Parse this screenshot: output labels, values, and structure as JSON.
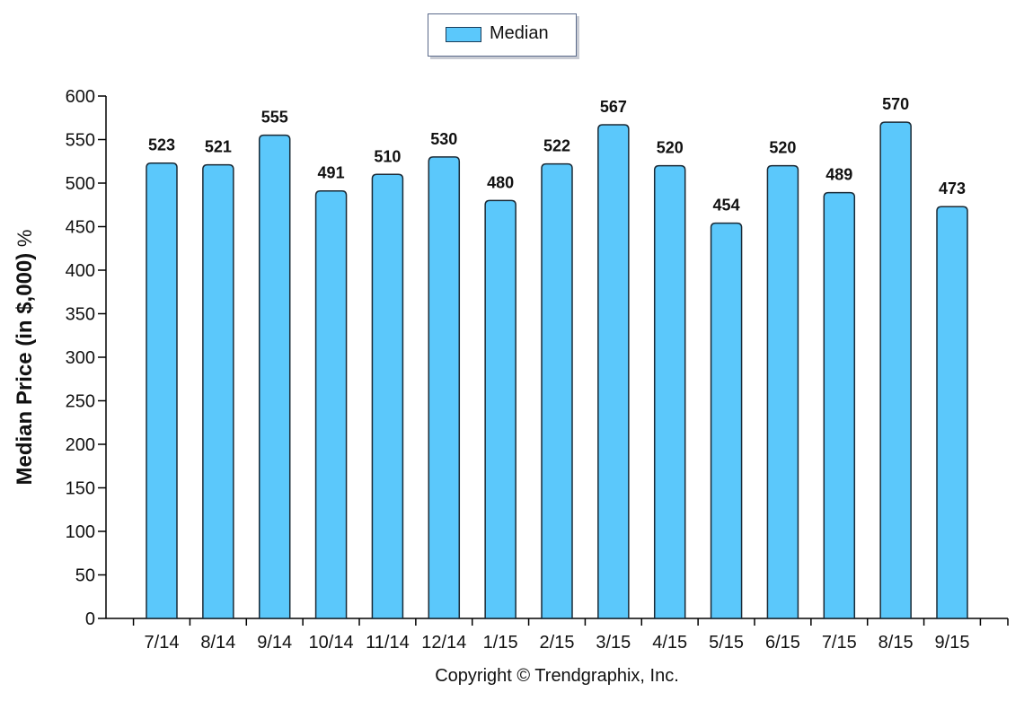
{
  "chart_data": {
    "type": "bar",
    "categories": [
      "7/14",
      "8/14",
      "9/14",
      "10/14",
      "11/14",
      "12/14",
      "1/15",
      "2/15",
      "3/15",
      "4/15",
      "5/15",
      "6/15",
      "7/15",
      "8/15",
      "9/15"
    ],
    "series": [
      {
        "name": "Median",
        "values": [
          523,
          521,
          555,
          491,
          510,
          530,
          480,
          522,
          567,
          520,
          454,
          520,
          489,
          570,
          473
        ]
      }
    ],
    "ylabel_main": "Median Price (in $,000)",
    "ylabel_unit": "%",
    "ylim": [
      0,
      600
    ],
    "yticks": [
      0,
      50,
      100,
      150,
      200,
      250,
      300,
      350,
      400,
      450,
      500,
      550,
      600
    ],
    "grid": false,
    "legend_position": "top-center",
    "bar_color": "#5bc8fb"
  },
  "footer": {
    "copyright": "Copyright © Trendgraphix, Inc."
  }
}
